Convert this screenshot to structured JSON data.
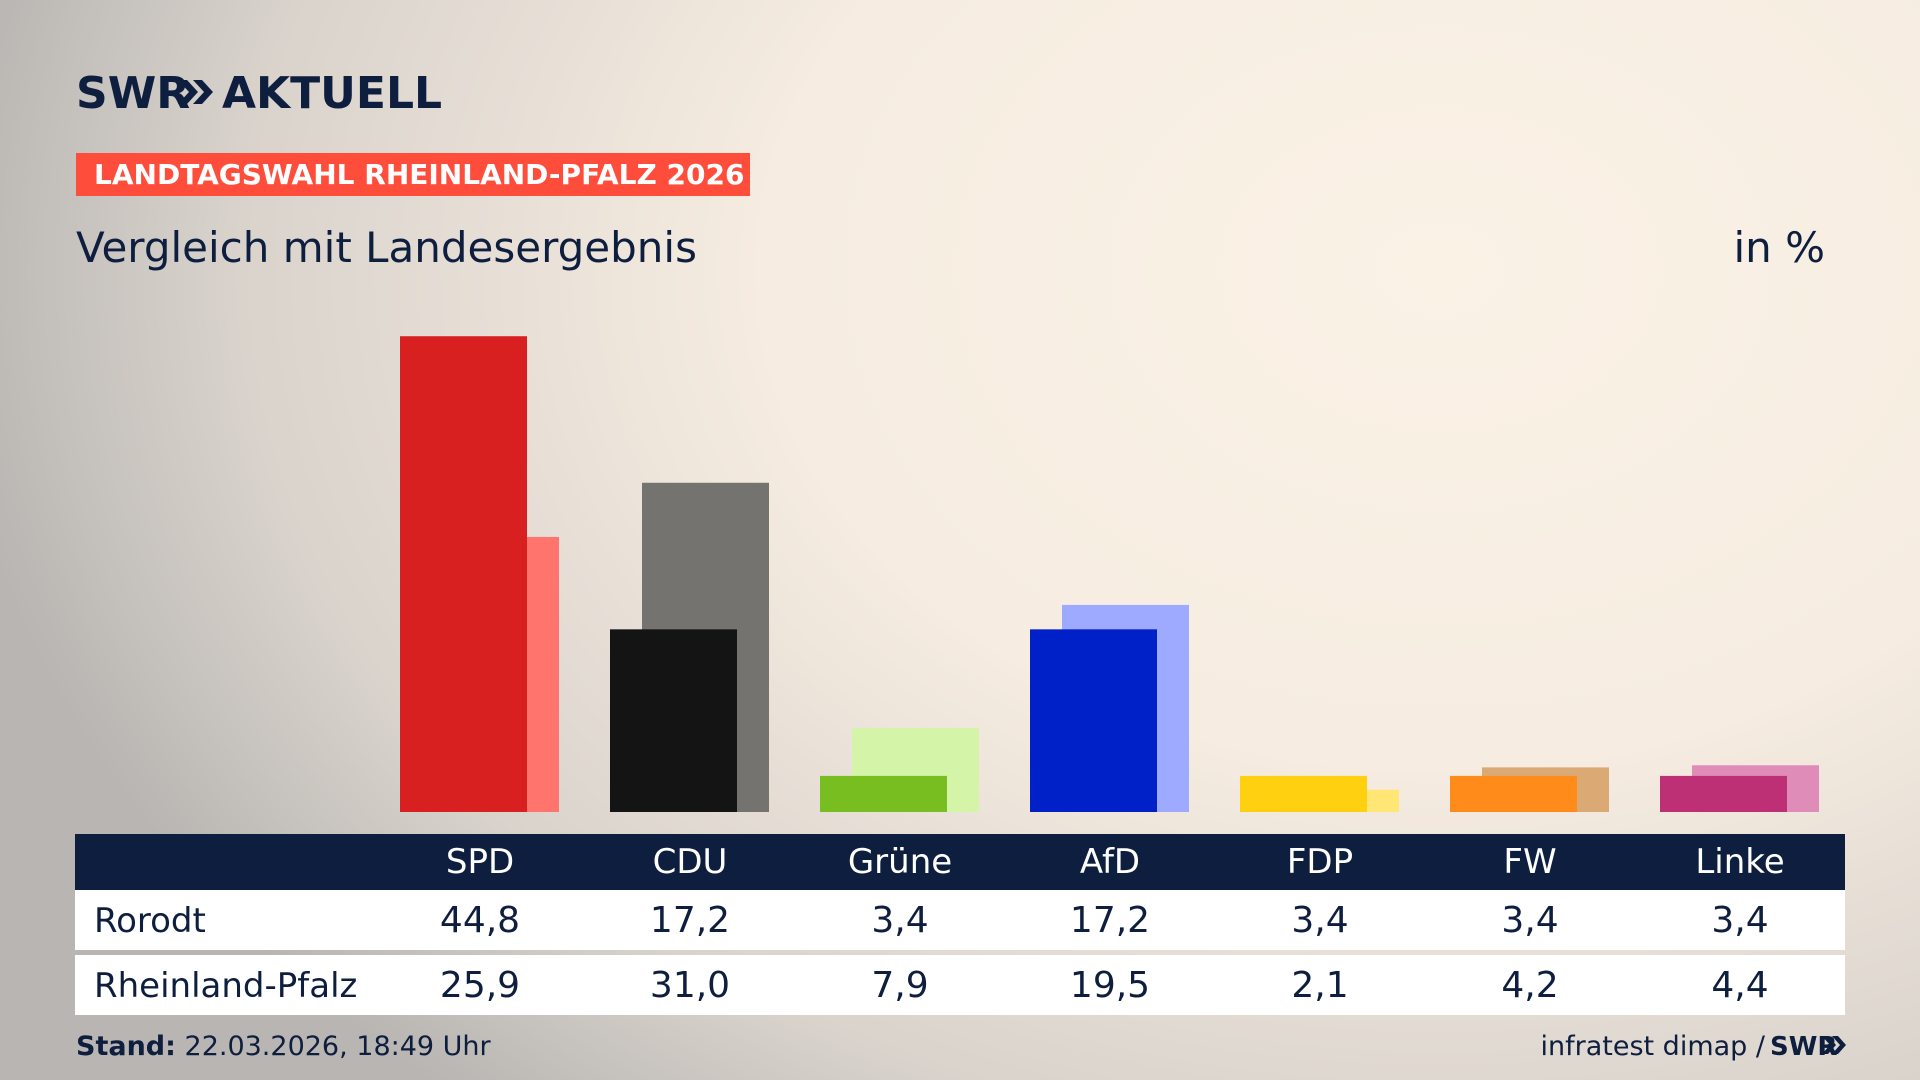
{
  "brand": "SWR",
  "brand_product": "AKTUELL",
  "kicker": "LANDTAGSWAHL RHEINLAND-PFALZ 2026",
  "chart_data": {
    "type": "bar",
    "title": "Vergleich mit Landesergebnis",
    "unit_label": "in %",
    "categories": [
      "SPD",
      "CDU",
      "Grüne",
      "AfD",
      "FDP",
      "FW",
      "Linke"
    ],
    "series": [
      {
        "name": "Rorodt",
        "colors": [
          "#d82020",
          "#141414",
          "#78be20",
          "#0020c8",
          "#ffd00f",
          "#ff8c1a",
          "#be3075"
        ],
        "values": [
          44.8,
          17.2,
          3.4,
          17.2,
          3.4,
          3.4,
          3.4
        ],
        "value_labels": [
          "44,8",
          "17,2",
          "3,4",
          "17,2",
          "3,4",
          "3,4",
          "3,4"
        ]
      },
      {
        "name": "Rheinland-Pfalz",
        "colors": [
          "#ff756e",
          "#757370",
          "#d4f5a8",
          "#9eaaff",
          "#ffe675",
          "#dba974",
          "#e08cb8"
        ],
        "values": [
          25.9,
          31.0,
          7.9,
          19.5,
          2.1,
          4.2,
          4.4
        ],
        "value_labels": [
          "25,9",
          "31,0",
          "7,9",
          "19,5",
          "2,1",
          "4,2",
          "4,4"
        ]
      }
    ]
  },
  "footer": {
    "stand_label": "Stand:",
    "stand": "22.03.2026, 18:49 Uhr",
    "source": "infratest dimap /",
    "source_brand": "SWR"
  }
}
